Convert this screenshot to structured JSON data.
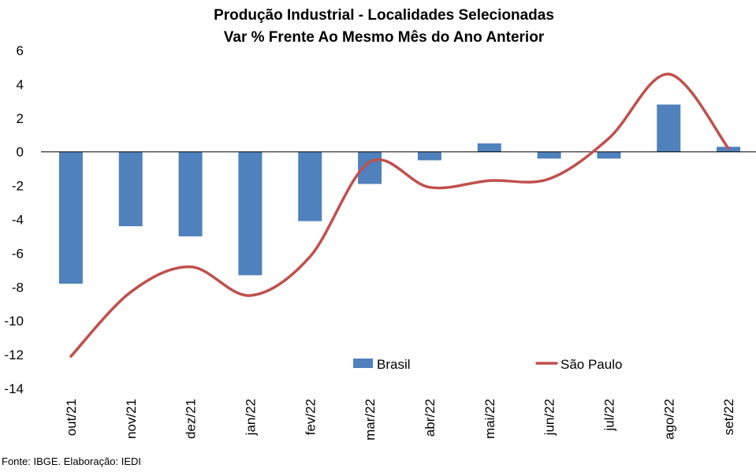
{
  "chart_data": {
    "type": "bar",
    "title": "Produção Industrial - Localidades Selecionadas",
    "subtitle": "Var % Frente Ao Mesmo Mês do Ano Anterior",
    "categories": [
      "out/21",
      "nov/21",
      "dez/21",
      "jan/22",
      "fev/22",
      "mar/22",
      "abr/22",
      "mai/22",
      "jun/22",
      "jul/22",
      "ago/22",
      "set/22"
    ],
    "series": [
      {
        "name": "Brasil",
        "type": "bar",
        "color": "#4f81bd",
        "values": [
          -7.8,
          -4.4,
          -5.0,
          -7.3,
          -4.1,
          -1.9,
          -0.5,
          0.5,
          -0.4,
          -0.4,
          2.8,
          0.3
        ]
      },
      {
        "name": "São Paulo",
        "type": "line",
        "color": "#c0504d",
        "values": [
          -12.1,
          -8.3,
          -6.8,
          -8.5,
          -6.2,
          -0.6,
          -2.1,
          -1.7,
          -1.6,
          0.8,
          4.6,
          0.2
        ]
      }
    ],
    "ylim": [
      -14,
      6
    ],
    "yticks": [
      "6",
      "4",
      "2",
      "0",
      "-2",
      "-4",
      "-6",
      "-8",
      "-10",
      "-12",
      "-14"
    ],
    "ytick_values": [
      6,
      4,
      2,
      0,
      -2,
      -4,
      -6,
      -8,
      -10,
      -12,
      -14
    ],
    "xlabel": "",
    "ylabel": "",
    "grid": false,
    "legend_position": "bottom-right inside plot",
    "source": "Fonte: IBGE. Elaboração: IEDI"
  }
}
